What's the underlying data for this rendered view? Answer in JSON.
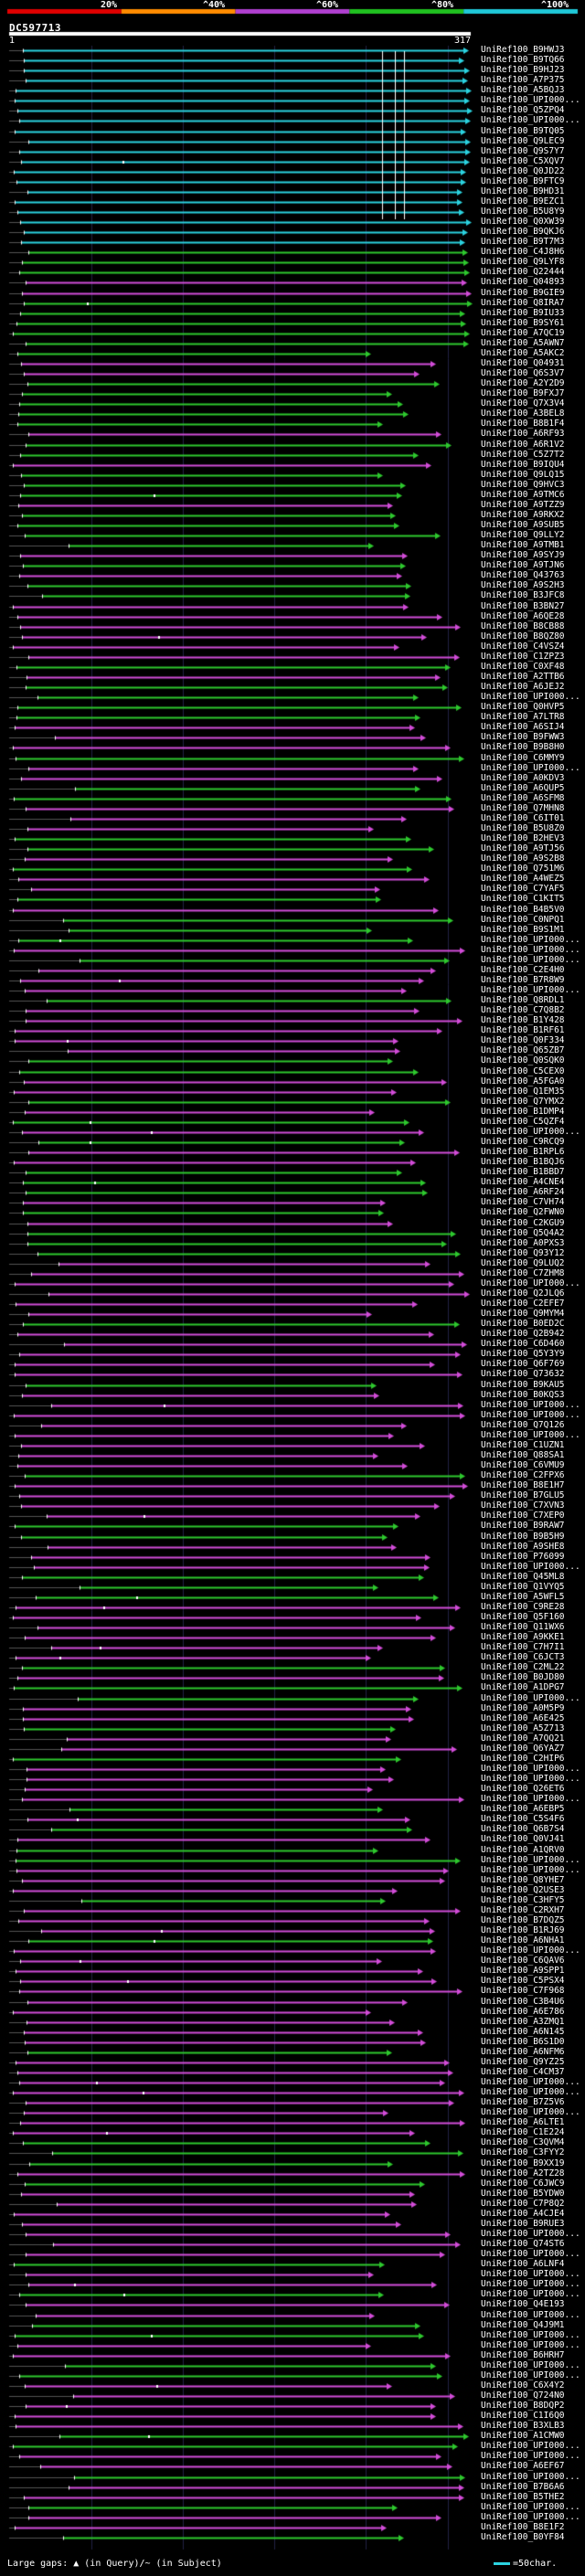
{
  "query": {
    "name": "DC597713",
    "start": "1",
    "end": "317"
  },
  "legend": {
    "ticks": [
      "20%",
      "^40%",
      "^60%",
      "^80%",
      "^100%"
    ],
    "bands": [
      "#e00000",
      "#ff8c00",
      "#b040d0",
      "#20c020",
      "#20c8d8"
    ]
  },
  "colors": {
    "cyan": "#2bd3e0",
    "green": "#2ec82e",
    "magenta": "#d24cd8",
    "gray": "#555555",
    "white": "#ffffff"
  },
  "hits": [
    "UniRef100_B9HWJ3",
    "UniRef100_B9TQ66",
    "UniRef100_B9HJ23",
    "UniRef100_A7P375",
    "UniRef100_A5BQJ3",
    "UniRef100_UPI000...",
    "UniRef100_Q5ZPQ4",
    "UniRef100_UPI000...",
    "UniRef100_B9TQ05",
    "UniRef100_Q9LEC9",
    "UniRef100_Q9S7Y7",
    "UniRef100_C5XQV7",
    "UniRef100_Q0JD22",
    "UniRef100_B9FTC9",
    "UniRef100_B9HD31",
    "UniRef100_B9EZC1",
    "UniRef100_B5U8Y9",
    "UniRef100_Q0XW39",
    "UniRef100_B9QKJ6",
    "UniRef100_B9T7M3",
    "UniRef100_C4J8H6",
    "UniRef100_Q9LYF8",
    "UniRef100_Q22444",
    "UniRef100_Q04893",
    "UniRef100_B9GIE9",
    "UniRef100_Q8IRA7",
    "UniRef100_B9IU33",
    "UniRef100_B9SY61",
    "UniRef100_A7QC19",
    "UniRef100_A5AWN7",
    "UniRef100_A5AKC2",
    "UniRef100_Q04931",
    "UniRef100_Q6S3V7",
    "UniRef100_A2Y2D9",
    "UniRef100_B9FXJ7",
    "UniRef100_Q7X3V4",
    "UniRef100_A3BEL8",
    "UniRef100_B8B1F4",
    "UniRef100_A6RF93",
    "UniRef100_A6R1V2",
    "UniRef100_C5Z7T2",
    "UniRef100_B9IQU4",
    "UniRef100_Q9LQ15",
    "UniRef100_Q9HVC3",
    "UniRef100_A9TMC6",
    "UniRef100_A9TZZ9",
    "UniRef100_A9RKX2",
    "UniRef100_A9SUB5",
    "UniRef100_Q9LLY2",
    "UniRef100_A9TMB1",
    "UniRef100_A9SYJ9",
    "UniRef100_A9TJN6",
    "UniRef100_Q43763",
    "UniRef100_A9S2H3",
    "UniRef100_B3JFC8",
    "UniRef100_B3BN27",
    "UniRef100_A6QE28",
    "UniRef100_B8CB88",
    "UniRef100_B8QZ80",
    "UniRef100_C4VSZ4",
    "UniRef100_C1ZPZ3",
    "UniRef100_C0XF48",
    "UniRef100_A2TTB6",
    "UniRef100_A6JEJ2",
    "UniRef100_UPI000...",
    "UniRef100_Q0HVP5",
    "UniRef100_A7LTR8",
    "UniRef100_A6SIJ4",
    "UniRef100_B9FWW3",
    "UniRef100_B9B8H0",
    "UniRef100_C6MMY9",
    "UniRef100_UPI000...",
    "UniRef100_A0KDV3",
    "UniRef100_A6QUP5",
    "UniRef100_A6SFM8",
    "UniRef100_Q7MHN8",
    "UniRef100_C6IT01",
    "UniRef100_B5U8Z0",
    "UniRef100_B2HEV3",
    "UniRef100_A9TJ56",
    "UniRef100_A9S2B8",
    "UniRef100_Q751M6",
    "UniRef100_A4WEZ5",
    "UniRef100_C7YAF5",
    "UniRef100_C1KIT5",
    "UniRef100_B4B5V0",
    "UniRef100_C0NPQ1",
    "UniRef100_B9S1M1",
    "UniRef100_UPI000...",
    "UniRef100_UPI000...",
    "UniRef100_UPI000...",
    "UniRef100_C2E4H0",
    "UniRef100_B7R8W9",
    "UniRef100_UPI000...",
    "UniRef100_Q8RDL1",
    "UniRef100_C7Q8B2",
    "UniRef100_B1Y428",
    "UniRef100_B1RF61",
    "UniRef100_Q0F334",
    "UniRef100_Q65ZB7",
    "UniRef100_Q0SQK0",
    "UniRef100_C5CEX0",
    "UniRef100_A5FGA0",
    "UniRef100_Q1EM35",
    "UniRef100_Q7YMX2",
    "UniRef100_B1DMP4",
    "UniRef100_C5QZF4",
    "UniRef100_UPI000...",
    "UniRef100_C9RCQ9",
    "UniRef100_B1RPL6",
    "UniRef100_B1BQJ6",
    "UniRef100_B1BBD7",
    "UniRef100_A4CNE4",
    "UniRef100_A6RF24",
    "UniRef100_C7VH74",
    "UniRef100_Q2FWN0",
    "UniRef100_C2KGU9",
    "UniRef100_Q5Q4A2",
    "UniRef100_A0PXS3",
    "UniRef100_Q93Y12",
    "UniRef100_Q9LUQ2",
    "UniRef100_C7ZHM8",
    "UniRef100_UPI000...",
    "UniRef100_Q2JLQ6",
    "UniRef100_C2EFE7",
    "UniRef100_Q9MYM4",
    "UniRef100_B0ED2C",
    "UniRef100_Q2B942",
    "UniRef100_C6D460",
    "UniRef100_Q5Y3Y9",
    "UniRef100_Q6F769",
    "UniRef100_Q73632",
    "UniRef100_B9KAU5",
    "UniRef100_B0KQS3",
    "UniRef100_UPI000...",
    "UniRef100_UPI000...",
    "UniRef100_Q7Q126",
    "UniRef100_UPI000...",
    "UniRef100_C1UZN1",
    "UniRef100_Q88SA1",
    "UniRef100_C6VMU9",
    "UniRef100_C2FPX6",
    "UniRef100_B8E1H7",
    "UniRef100_B7GLU5",
    "UniRef100_C7XVN3",
    "UniRef100_C7XEP0",
    "UniRef100_B9RAW7",
    "UniRef100_B9B5H9",
    "UniRef100_A9SHE8",
    "UniRef100_P76099",
    "UniRef100_UPI000...",
    "UniRef100_Q45ML8",
    "UniRef100_Q1VYQ5",
    "UniRef100_A5WFL5",
    "UniRef100_C9RE28",
    "UniRef100_Q5F160",
    "UniRef100_Q11WX6",
    "UniRef100_A9KKE1",
    "UniRef100_C7H7I1",
    "UniRef100_C6JCT3",
    "UniRef100_C2ML22",
    "UniRef100_B0JD80",
    "UniRef100_A1DPG7",
    "UniRef100_UPI000...",
    "UniRef100_A0M5P9",
    "UniRef100_A6E425",
    "UniRef100_A5Z713",
    "UniRef100_A7QQ21",
    "UniRef100_Q6YAZ7",
    "UniRef100_C2HIP6",
    "UniRef100_UPI000...",
    "UniRef100_UPI000...",
    "UniRef100_Q26ET6",
    "UniRef100_UPI000...",
    "UniRef100_A6EBP5",
    "UniRef100_C5S4F6",
    "UniRef100_Q6B7S4",
    "UniRef100_Q0VJ41",
    "UniRef100_A1QRV0",
    "UniRef100_UPI000...",
    "UniRef100_UPI000...",
    "UniRef100_Q8YHE7",
    "UniRef100_Q2USE3",
    "UniRef100_C3HFY5",
    "UniRef100_C2RXH7",
    "UniRef100_B7DQZ5",
    "UniRef100_B1RJ69",
    "UniRef100_A6NHA1",
    "UniRef100_UPI000...",
    "UniRef100_C6QAV6",
    "UniRef100_A9SPP1",
    "UniRef100_C5PSX4",
    "UniRef100_C7F968",
    "UniRef100_C3B4U6",
    "UniRef100_A6E786",
    "UniRef100_A3ZMQ1",
    "UniRef100_A6N145",
    "UniRef100_B6S1D0",
    "UniRef100_A6NFM6",
    "UniRef100_Q9YZ25",
    "UniRef100_C4CM37",
    "UniRef100_UPI000...",
    "UniRef100_UPI000...",
    "UniRef100_B7Z5V6",
    "UniRef100_UPI000...",
    "UniRef100_A6LTE1",
    "UniRef100_C1E224",
    "UniRef100_C3QVM4",
    "UniRef100_C3FYY2",
    "UniRef100_B9XX19",
    "UniRef100_A2TZ28",
    "UniRef100_C6JWC9",
    "UniRef100_B5YDW0",
    "UniRef100_C7P8Q2",
    "UniRef100_A4CJE4",
    "UniRef100_B9RUE3",
    "UniRef100_UPI000...",
    "UniRef100_Q74ST6",
    "UniRef100_UPI000...",
    "UniRef100_A6LNF4",
    "UniRef100_UPI000...",
    "UniRef100_UPI000...",
    "UniRef100_UPI000...",
    "UniRef100_Q4E193",
    "UniRef100_UPI000...",
    "UniRef100_Q4J9M1",
    "UniRef100_UPI000...",
    "UniRef100_UPI000...",
    "UniRef100_B6HRH7",
    "UniRef100_UPI000...",
    "UniRef100_UPI000...",
    "UniRef100_C6X4Y2",
    "UniRef100_Q724N0",
    "UniRef100_B8DQP2",
    "UniRef100_C1I6Q0",
    "UniRef100_B3XLB3",
    "UniRef100_A1CMW0",
    "UniRef100_UPI000...",
    "UniRef100_UPI000...",
    "UniRef100_A6EF67",
    "UniRef100_UPI000...",
    "UniRef100_B7B6A6",
    "UniRef100_B5THE2",
    "UniRef100_UPI000...",
    "UniRef100_UPI000...",
    "UniRef100_B8E1F2",
    "UniRef100_B0YF84"
  ],
  "footer": {
    "text": "Large gaps: ▲ (in Query)/~ (in Subject)",
    "scale": "=50char."
  }
}
